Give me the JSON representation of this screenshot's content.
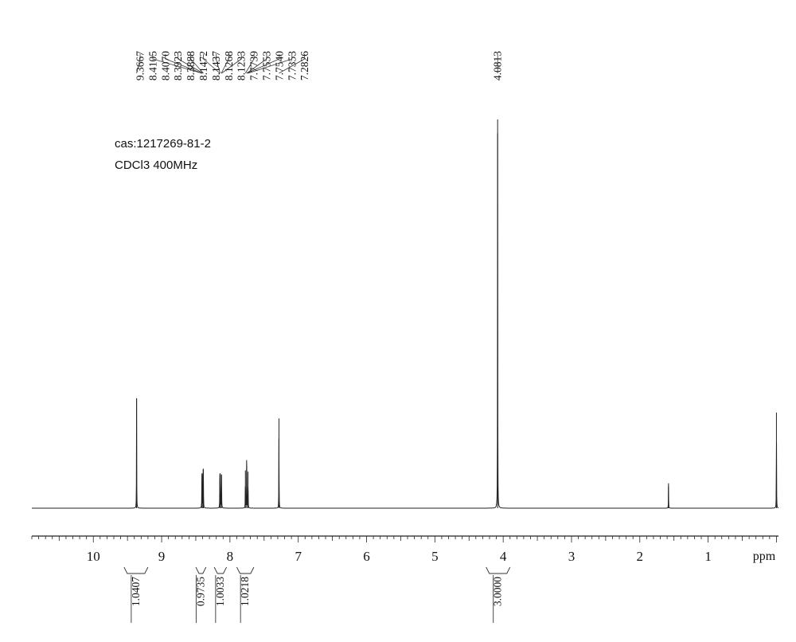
{
  "annotations": {
    "cas": "cas:1217269-81-2",
    "solvent": "CDCl3  400MHz"
  },
  "chart_data": {
    "type": "line",
    "xlabel": "ppm",
    "xlim": [
      10.9,
      -0.03
    ],
    "x_ticks": [
      10,
      9,
      8,
      7,
      6,
      5,
      4,
      3,
      2,
      1
    ],
    "tick_labels": [
      "10",
      "9",
      "8",
      "7",
      "6",
      "5",
      "4",
      "3",
      "2",
      "1"
    ],
    "grid": false,
    "peaks": [
      {
        "ppm": 9.3667,
        "height": 0.283
      },
      {
        "ppm": 8.4105,
        "height": 0.088
      },
      {
        "ppm": 8.407,
        "height": 0.09
      },
      {
        "ppm": 8.3923,
        "height": 0.086
      },
      {
        "ppm": 8.3888,
        "height": 0.088
      },
      {
        "ppm": 8.1472,
        "height": 0.088
      },
      {
        "ppm": 8.1437,
        "height": 0.09
      },
      {
        "ppm": 8.1268,
        "height": 0.085
      },
      {
        "ppm": 8.1233,
        "height": 0.087
      },
      {
        "ppm": 7.7739,
        "height": 0.097
      },
      {
        "ppm": 7.7553,
        "height": 0.101
      },
      {
        "ppm": 7.754,
        "height": 0.099
      },
      {
        "ppm": 7.7353,
        "height": 0.094
      },
      {
        "ppm": 7.2826,
        "height": 0.231
      },
      {
        "ppm": 4.0813,
        "height": 1.0
      },
      {
        "ppm": 1.58,
        "height": 0.064
      },
      {
        "ppm": 0.0,
        "height": 0.246
      }
    ],
    "peak_labels": [
      "9.3667",
      "8.4105",
      "8.4070",
      "8.3923",
      "8.3888",
      "8.1472",
      "8.1437",
      "8.1268",
      "8.1233",
      "7.7739",
      "7.7553",
      "7.7540",
      "7.7353",
      "7.2826"
    ],
    "single_peak_label": "4.0813",
    "integrals": [
      {
        "from": 9.55,
        "to": 9.2,
        "value": "1.0407"
      },
      {
        "from": 8.5,
        "to": 8.35,
        "value": "0.9735"
      },
      {
        "from": 8.23,
        "to": 8.05,
        "value": "1.0033"
      },
      {
        "from": 7.9,
        "to": 7.65,
        "value": "1.0218"
      },
      {
        "from": 4.25,
        "to": 3.9,
        "value": "3.0000"
      }
    ]
  }
}
